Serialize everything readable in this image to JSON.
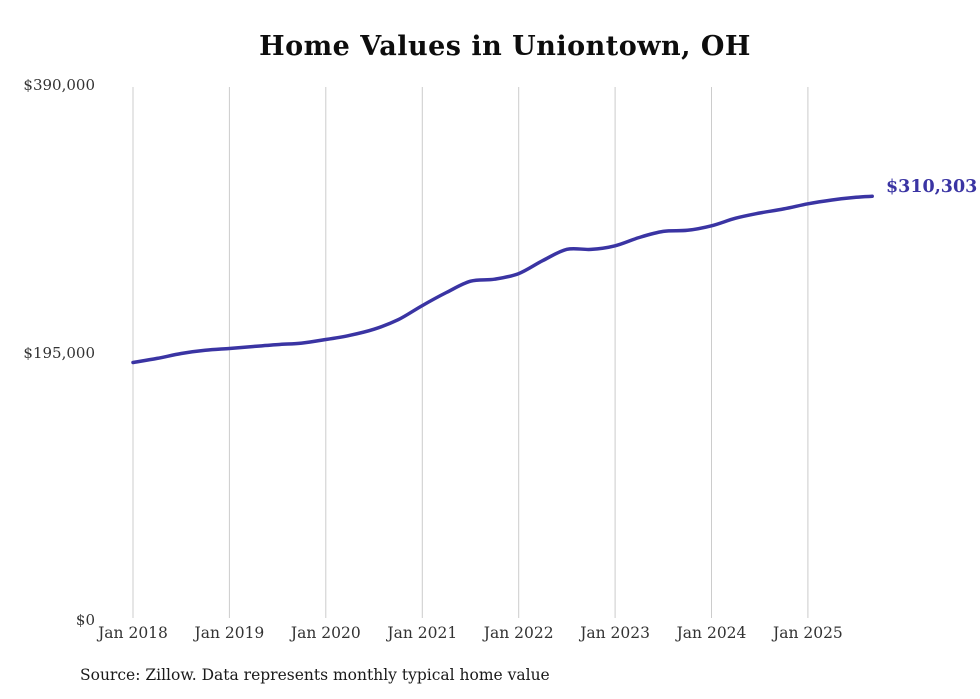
{
  "title": "Home Values in Uniontown, OH",
  "source_note": "Source: Zillow. Data represents monthly typical home value",
  "colors": {
    "line": "#3a34a3",
    "grid": "#cccccc",
    "title_text": "#0d0d0d",
    "tick_text": "#333333",
    "end_label_text": "#3a34a3"
  },
  "chart_data": {
    "type": "line",
    "title": "Home Values in Uniontown, OH",
    "xlabel": "",
    "ylabel": "",
    "ylim": [
      0,
      390000
    ],
    "grid": "vertical-only",
    "legend": "none",
    "categories": [
      "Jan 2018",
      "Jan 2019",
      "Jan 2020",
      "Jan 2021",
      "Jan 2022",
      "Jan 2023",
      "Jan 2024",
      "Jan 2025"
    ],
    "y_ticks": [
      "$0",
      "$195,000",
      "$390,000"
    ],
    "end_label": "$310,303",
    "series": [
      {
        "name": "Monthly typical home value",
        "points": [
          {
            "month": "2018-01",
            "value": 188000
          },
          {
            "month": "2018-04",
            "value": 191000
          },
          {
            "month": "2018-07",
            "value": 194600
          },
          {
            "month": "2018-10",
            "value": 197000
          },
          {
            "month": "2019-01",
            "value": 198300
          },
          {
            "month": "2019-04",
            "value": 199800
          },
          {
            "month": "2019-07",
            "value": 201200
          },
          {
            "month": "2019-10",
            "value": 202300
          },
          {
            "month": "2020-01",
            "value": 204900
          },
          {
            "month": "2020-04",
            "value": 208000
          },
          {
            "month": "2020-07",
            "value": 212500
          },
          {
            "month": "2020-10",
            "value": 219500
          },
          {
            "month": "2021-01",
            "value": 229900
          },
          {
            "month": "2021-04",
            "value": 239500
          },
          {
            "month": "2021-07",
            "value": 247800
          },
          {
            "month": "2021-10",
            "value": 249300
          },
          {
            "month": "2022-01",
            "value": 253400
          },
          {
            "month": "2022-04",
            "value": 263000
          },
          {
            "month": "2022-07",
            "value": 271300
          },
          {
            "month": "2022-10",
            "value": 271200
          },
          {
            "month": "2023-01",
            "value": 273900
          },
          {
            "month": "2023-04",
            "value": 280000
          },
          {
            "month": "2023-07",
            "value": 284500
          },
          {
            "month": "2023-10",
            "value": 285300
          },
          {
            "month": "2024-01",
            "value": 288600
          },
          {
            "month": "2024-04",
            "value": 294200
          },
          {
            "month": "2024-07",
            "value": 298000
          },
          {
            "month": "2024-10",
            "value": 301000
          },
          {
            "month": "2025-01",
            "value": 304800
          },
          {
            "month": "2025-04",
            "value": 307600
          },
          {
            "month": "2025-07",
            "value": 309600
          },
          {
            "month": "2025-09",
            "value": 310303
          }
        ]
      }
    ]
  }
}
